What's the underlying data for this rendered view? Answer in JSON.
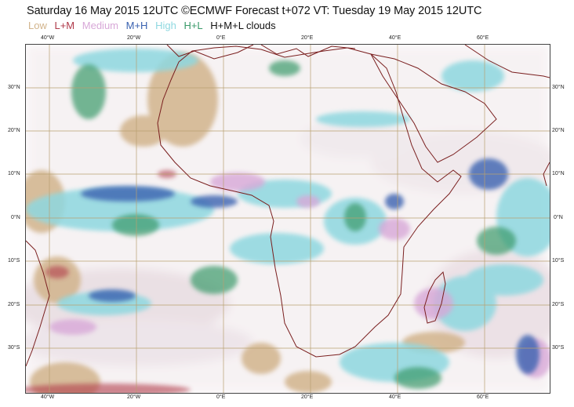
{
  "header": {
    "title": "Saturday 16 May 2015 12UTC ©ECMWF Forecast t+072 VT: Tuesday 19 May 2015 12UTC"
  },
  "legend": {
    "items": [
      {
        "label": "Low",
        "color": "#d2b48c"
      },
      {
        "label": "L+M",
        "color": "#b03a4a"
      },
      {
        "label": "Medium",
        "color": "#d8a8d8"
      },
      {
        "label": "M+H",
        "color": "#3a62b0"
      },
      {
        "label": "High",
        "color": "#8ed8e0"
      },
      {
        "label": "H+L",
        "color": "#3a9a6a"
      }
    ],
    "suffix": "H+M+L clouds",
    "suffix_color": "#111111"
  },
  "map": {
    "lon_labels_top": [
      "40°W",
      "20°W",
      "0°E",
      "20°E",
      "40°E",
      "60°E"
    ],
    "lon_labels_bottom": [
      "40°W",
      "20°W",
      "0°E",
      "20°E",
      "40°E",
      "60°E"
    ],
    "lat_labels_left": [
      "30°N",
      "20°N",
      "10°N",
      "0°N",
      "10°S",
      "20°S",
      "30°S"
    ],
    "lat_labels_right": [
      "30°N",
      "20°N",
      "10°N",
      "0°N",
      "10°S",
      "20°S",
      "30°S"
    ],
    "coastline_color": "#7a1f1f",
    "grid_color": "#b8a070"
  }
}
